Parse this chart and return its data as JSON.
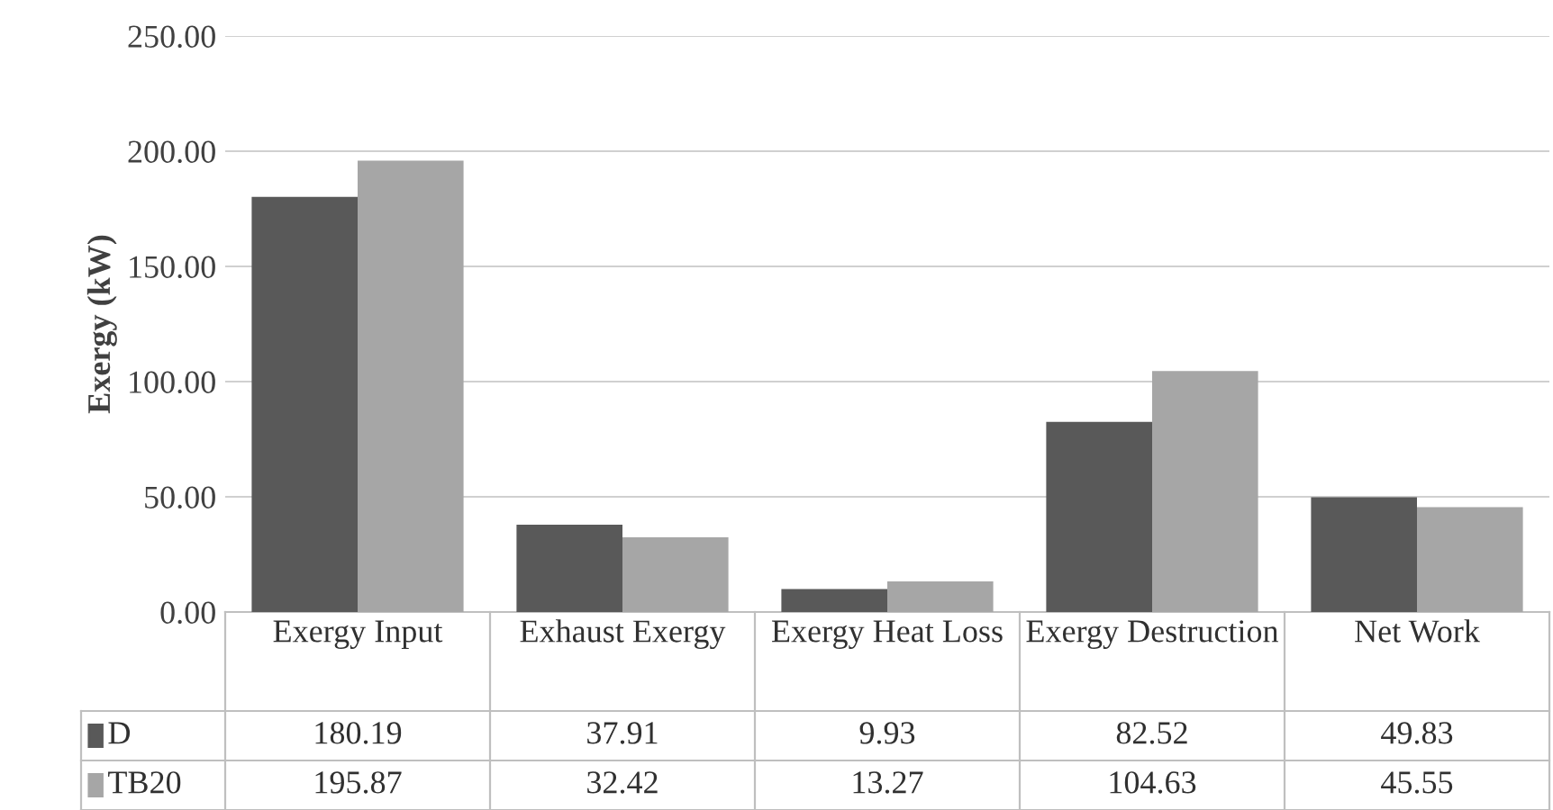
{
  "chart_data": {
    "type": "bar",
    "ylabel": "Exergy (kW)",
    "categories": [
      "Exergy Input",
      "Exhaust Exergy",
      "Exergy Heat Loss",
      "Exergy Destruction",
      "Net Work"
    ],
    "series": [
      {
        "name": "D",
        "color": "#595959",
        "values": [
          180.19,
          37.91,
          9.93,
          82.52,
          49.83
        ]
      },
      {
        "name": "TB20",
        "color": "#a6a6a6",
        "values": [
          195.87,
          32.42,
          13.27,
          104.63,
          45.55
        ]
      }
    ],
    "ylim": [
      0,
      250
    ],
    "yticks": [
      {
        "value": 0,
        "label": "0.00"
      },
      {
        "value": 50,
        "label": "50.00"
      },
      {
        "value": 100,
        "label": "100.00"
      },
      {
        "value": 150,
        "label": "150.00"
      },
      {
        "value": 200,
        "label": "200.00"
      },
      {
        "value": 250,
        "label": "250.00"
      }
    ],
    "grid": "y",
    "data_labels": true,
    "legend": "bottom"
  }
}
